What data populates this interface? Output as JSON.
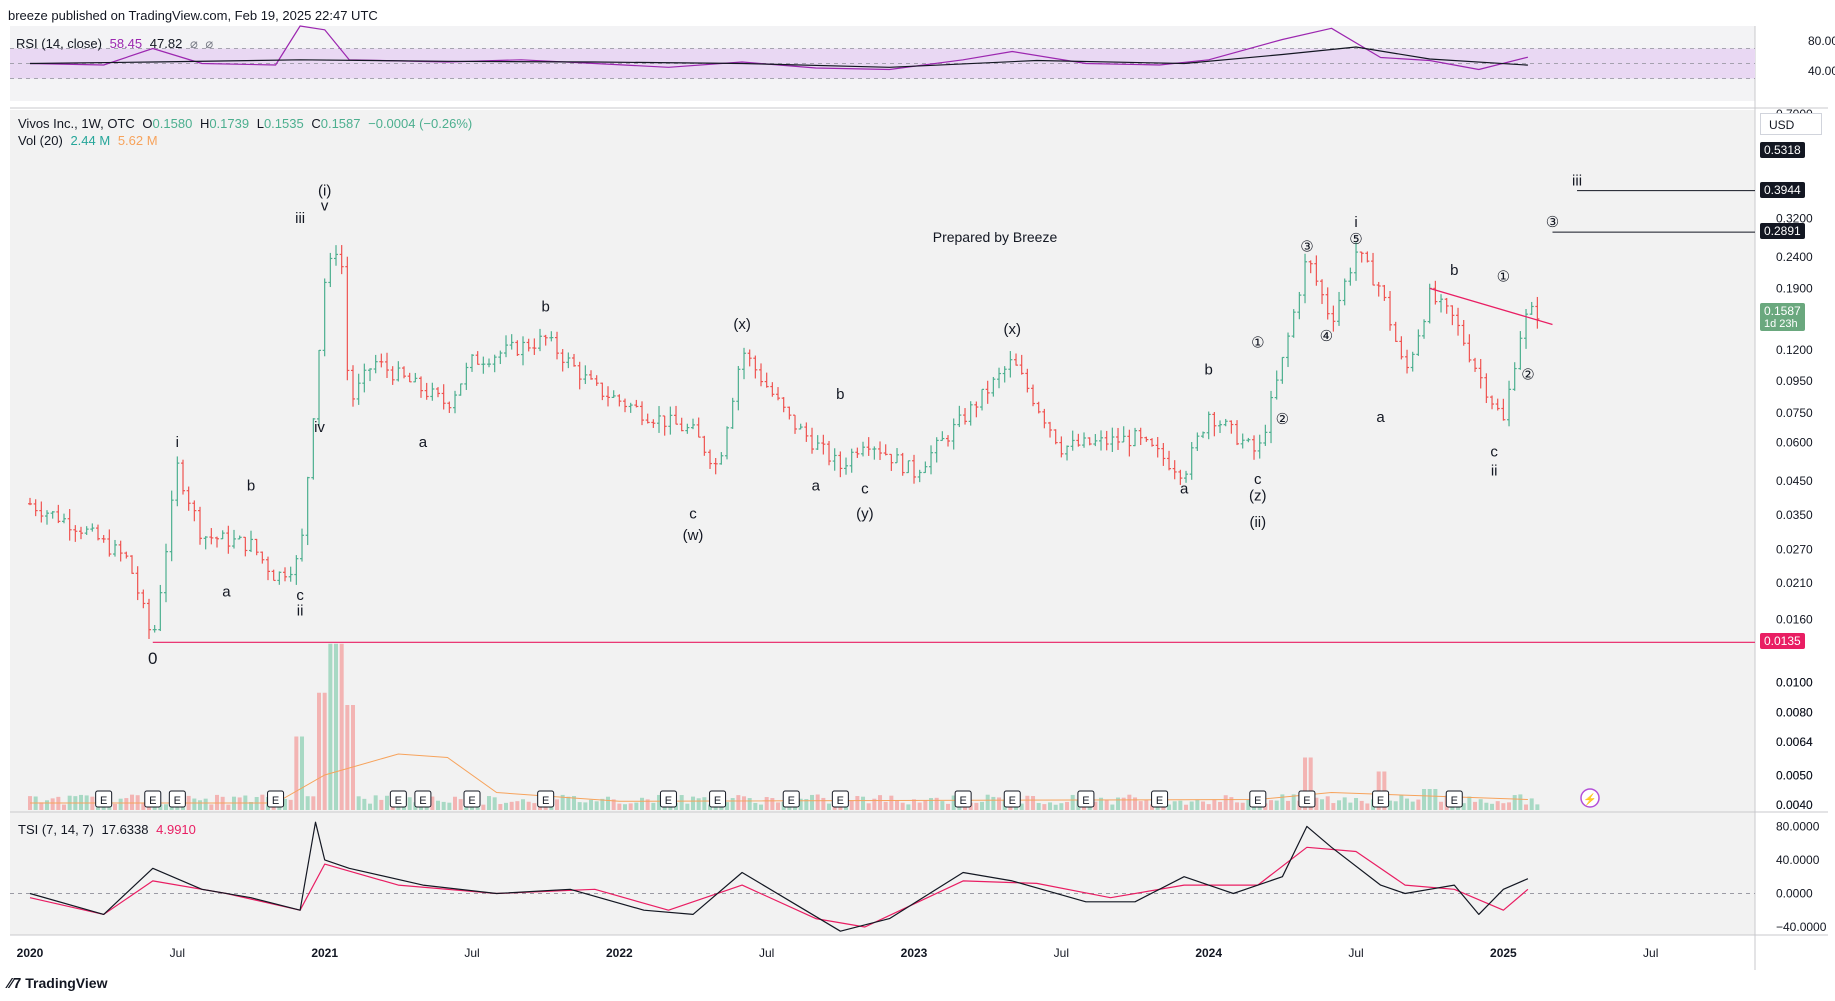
{
  "header": {
    "publisher": "breeze published on TradingView.com, Feb 19, 2025 22:47 UTC"
  },
  "rsi_legend": {
    "name": "RSI (14, close)",
    "v1": "58.45",
    "v2": "47.82",
    "s1": "⌀",
    "s2": "⌀"
  },
  "price_legend": {
    "symbol": "Vivos Inc., 1W, OTC",
    "o_label": "O",
    "o": "0.1580",
    "h_label": "H",
    "h": "0.1739",
    "l_label": "L",
    "l": "0.1535",
    "c_label": "C",
    "c": "0.1587",
    "change": "−0.0004 (−0.26%)"
  },
  "vol_legend": {
    "name": "Vol (20)",
    "v1": "2.44 M",
    "v2": "5.62 M"
  },
  "tsi_legend": {
    "name": "TSI (7, 14, 7)",
    "v1": "17.6338",
    "v2": "4.9910"
  },
  "currency": "USD",
  "watermark": "Prepared by Breeze",
  "footer": {
    "logo": "TradingView"
  },
  "colors": {
    "up": "#4caf8f",
    "down": "#ef5350",
    "rsi": "#9c27b0",
    "tsi": "#000000",
    "signal": "#e91e63",
    "accent": "#e91e63"
  },
  "chart_data": [
    {
      "type": "line",
      "name": "RSI",
      "ylim": [
        0,
        100
      ],
      "ticks": [
        "80.00",
        "40.00"
      ],
      "band": [
        30,
        70
      ],
      "values": [
        [
          "2020-01",
          50
        ],
        [
          "2020-04",
          48
        ],
        [
          "2020-06",
          70
        ],
        [
          "2020-08",
          50
        ],
        [
          "2020-11",
          48
        ],
        [
          "2020-12",
          100
        ],
        [
          "2021-01",
          95
        ],
        [
          "2021-02",
          55
        ],
        [
          "2021-06",
          52
        ],
        [
          "2021-09",
          55
        ],
        [
          "2021-12",
          50
        ],
        [
          "2022-03",
          45
        ],
        [
          "2022-06",
          52
        ],
        [
          "2022-09",
          44
        ],
        [
          "2022-12",
          42
        ],
        [
          "2023-03",
          55
        ],
        [
          "2023-05",
          66
        ],
        [
          "2023-08",
          50
        ],
        [
          "2023-11",
          48
        ],
        [
          "2024-01",
          55
        ],
        [
          "2024-04",
          82
        ],
        [
          "2024-06",
          97
        ],
        [
          "2024-08",
          58
        ],
        [
          "2024-10",
          54
        ],
        [
          "2024-12",
          42
        ],
        [
          "2025-02",
          58.45
        ]
      ],
      "ma_values": [
        [
          "2020-01",
          50
        ],
        [
          "2020-06",
          52
        ],
        [
          "2020-12",
          55
        ],
        [
          "2021-06",
          53
        ],
        [
          "2021-12",
          52
        ],
        [
          "2022-06",
          50
        ],
        [
          "2022-12",
          45
        ],
        [
          "2023-06",
          54
        ],
        [
          "2023-12",
          50
        ],
        [
          "2024-04",
          62
        ],
        [
          "2024-07",
          72
        ],
        [
          "2024-10",
          56
        ],
        [
          "2025-02",
          47.82
        ]
      ]
    },
    {
      "type": "line",
      "name": "Vivos Inc., 1W, OTC",
      "yscale": "log",
      "ylim": [
        0.0038,
        0.72
      ],
      "y_ticks": [
        "0.7000",
        "0.5318",
        "0.3944",
        "0.3200",
        "0.2891",
        "0.2400",
        "0.1900",
        "0.1587",
        "0.1200",
        "0.0950",
        "0.0750",
        "0.0600",
        "0.0450",
        "0.0350",
        "0.0270",
        "0.0210",
        "0.0160",
        "0.0135",
        "0.0100",
        "0.0080",
        "0.0064",
        "0.0050",
        "0.0040"
      ],
      "x_ticks": [
        "2020",
        "Jul",
        "2021",
        "Jul",
        "2022",
        "Jul",
        "2023",
        "Jul",
        "2024",
        "Jul",
        "2025",
        "Jul"
      ],
      "price_path": [
        [
          "2020-01",
          0.038
        ],
        [
          "2020-03",
          0.032
        ],
        [
          "2020-05",
          0.025
        ],
        [
          "2020-06",
          0.0135
        ],
        [
          "2020-07",
          0.05
        ],
        [
          "2020-08",
          0.03
        ],
        [
          "2020-10",
          0.028
        ],
        [
          "2020-11",
          0.022
        ],
        [
          "2020-12",
          0.025
        ],
        [
          "2020-12-20",
          0.09
        ],
        [
          "2021-01",
          0.2
        ],
        [
          "2021-01-20",
          0.28
        ],
        [
          "2021-02",
          0.08
        ],
        [
          "2021-03",
          0.11
        ],
        [
          "2021-06",
          0.08
        ],
        [
          "2021-07",
          0.11
        ],
        [
          "2021-10",
          0.13
        ],
        [
          "2021-12",
          0.09
        ],
        [
          "2022-02",
          0.075
        ],
        [
          "2022-04",
          0.065
        ],
        [
          "2022-05",
          0.05
        ],
        [
          "2022-06",
          0.12
        ],
        [
          "2022-08",
          0.07
        ],
        [
          "2022-10",
          0.05
        ],
        [
          "2022-11",
          0.062
        ],
        [
          "2023-01",
          0.048
        ],
        [
          "2023-03",
          0.072
        ],
        [
          "2023-05",
          0.11
        ],
        [
          "2023-07",
          0.058
        ],
        [
          "2023-10",
          0.062
        ],
        [
          "2023-12",
          0.048
        ],
        [
          "2024-01",
          0.075
        ],
        [
          "2024-03",
          0.055
        ],
        [
          "2024-04",
          0.11
        ],
        [
          "2024-05",
          0.24
        ],
        [
          "2024-06",
          0.15
        ],
        [
          "2024-07",
          0.25
        ],
        [
          "2024-08",
          0.19
        ],
        [
          "2024-09",
          0.1
        ],
        [
          "2024-10",
          0.18
        ],
        [
          "2024-11",
          0.15
        ],
        [
          "2024-12",
          0.1
        ],
        [
          "2025-01",
          0.07
        ],
        [
          "2025-01-20",
          0.13
        ],
        [
          "2025-02",
          0.1587
        ]
      ],
      "horizontal_levels": [
        {
          "price": 0.0135,
          "label": "0.0135"
        },
        {
          "price": 0.3944,
          "label": "0.3944"
        },
        {
          "price": 0.2891,
          "label": "0.2891"
        }
      ],
      "level_tags": [
        {
          "price": 0.5318,
          "label": "0.5318"
        },
        {
          "price": 0.3944,
          "label": "0.3944"
        },
        {
          "price": 0.2891,
          "label": "0.2891"
        },
        {
          "price": 0.1587,
          "label": "0.1587",
          "sub": "1d 23h"
        },
        {
          "price": 0.0135,
          "label": "0.0135"
        }
      ],
      "trendline": [
        [
          "2024-10",
          0.19
        ],
        [
          "2025-03",
          0.145
        ]
      ],
      "wave_labels": [
        {
          "t": "0",
          "date": "2020-06",
          "price": 0.0115
        },
        {
          "t": "i",
          "date": "2020-07",
          "price": 0.058
        },
        {
          "t": "a",
          "date": "2020-09",
          "price": 0.019
        },
        {
          "t": "b",
          "date": "2020-10",
          "price": 0.042
        },
        {
          "t": "c",
          "date": "2020-12",
          "price": 0.0185
        },
        {
          "t": "ii",
          "date": "2020-12",
          "price": 0.0165
        },
        {
          "t": "iii",
          "date": "2020-12",
          "price": 0.31
        },
        {
          "t": "iv",
          "date": "2020-12-25",
          "price": 0.065
        },
        {
          "t": "(i)",
          "date": "2021-01",
          "price": 0.38
        },
        {
          "t": "v",
          "date": "2021-01",
          "price": 0.34
        },
        {
          "t": "a",
          "date": "2021-05",
          "price": 0.058
        },
        {
          "t": "b",
          "date": "2021-10",
          "price": 0.16
        },
        {
          "t": "c",
          "date": "2022-04",
          "price": 0.034
        },
        {
          "t": "(w)",
          "date": "2022-04",
          "price": 0.029
        },
        {
          "t": "(x)",
          "date": "2022-06",
          "price": 0.14
        },
        {
          "t": "a",
          "date": "2022-09",
          "price": 0.042
        },
        {
          "t": "b",
          "date": "2022-10",
          "price": 0.083
        },
        {
          "t": "c",
          "date": "2022-11",
          "price": 0.041
        },
        {
          "t": "(y)",
          "date": "2022-11",
          "price": 0.034
        },
        {
          "t": "(x)",
          "date": "2023-05",
          "price": 0.135
        },
        {
          "t": "a",
          "date": "2023-12",
          "price": 0.041
        },
        {
          "t": "b",
          "date": "2024-01",
          "price": 0.1
        },
        {
          "t": "c",
          "date": "2024-03",
          "price": 0.044
        },
        {
          "t": "(z)",
          "date": "2024-03",
          "price": 0.039
        },
        {
          "t": "(ii)",
          "date": "2024-03",
          "price": 0.032
        },
        {
          "t": "①",
          "date": "2024-03",
          "price": 0.122
        },
        {
          "t": "②",
          "date": "2024-04",
          "price": 0.069
        },
        {
          "t": "③",
          "date": "2024-05",
          "price": 0.25
        },
        {
          "t": "④",
          "date": "2024-05-25",
          "price": 0.128
        },
        {
          "t": "⑤",
          "date": "2024-07",
          "price": 0.265
        },
        {
          "t": "i",
          "date": "2024-07",
          "price": 0.3
        },
        {
          "t": "a",
          "date": "2024-08",
          "price": 0.07
        },
        {
          "t": "b",
          "date": "2024-11",
          "price": 0.21
        },
        {
          "t": "①",
          "date": "2025-01",
          "price": 0.2
        },
        {
          "t": "②",
          "date": "2025-02",
          "price": 0.096
        },
        {
          "t": "c",
          "date": "2024-12-20",
          "price": 0.054
        },
        {
          "t": "ii",
          "date": "2024-12-20",
          "price": 0.047
        },
        {
          "t": "iii",
          "date": "2025-04",
          "price": 0.41
        },
        {
          "t": "③",
          "date": "2025-03",
          "price": 0.3
        }
      ]
    },
    {
      "type": "bar",
      "name": "Vol (20)",
      "values_note_free": true,
      "spikes": [
        [
          "2020-12",
          0.42
        ],
        [
          "2021-01",
          0.67
        ],
        [
          "2021-01-15",
          0.95
        ],
        [
          "2021-02",
          0.6
        ],
        [
          "2024-05",
          0.3
        ],
        [
          "2024-08",
          0.22
        ],
        [
          "2024-10",
          0.12
        ]
      ],
      "baseline": 0.06,
      "earnings_markers": [
        "2020-04",
        "2020-06",
        "2020-07",
        "2020-11",
        "2021-04",
        "2021-05",
        "2021-07",
        "2021-10",
        "2022-03",
        "2022-05",
        "2022-08",
        "2022-10",
        "2023-03",
        "2023-05",
        "2023-08",
        "2023-11",
        "2024-03",
        "2024-05",
        "2024-08",
        "2024-11"
      ],
      "earnings_label": "E"
    },
    {
      "type": "line",
      "name": "TSI (7, 14, 7)",
      "ylim": [
        -40,
        90
      ],
      "ticks": [
        "80.0000",
        "40.0000",
        "0.0000",
        "−40.0000"
      ],
      "tsi": [
        [
          "2020-01",
          0
        ],
        [
          "2020-04",
          -25
        ],
        [
          "2020-06",
          30
        ],
        [
          "2020-08",
          5
        ],
        [
          "2020-10",
          -5
        ],
        [
          "2020-12",
          -20
        ],
        [
          "2020-12-20",
          85
        ],
        [
          "2021-01",
          40
        ],
        [
          "2021-02",
          30
        ],
        [
          "2021-05",
          10
        ],
        [
          "2021-08",
          0
        ],
        [
          "2021-11",
          5
        ],
        [
          "2022-02",
          -20
        ],
        [
          "2022-04",
          -25
        ],
        [
          "2022-06",
          25
        ],
        [
          "2022-08",
          -10
        ],
        [
          "2022-10",
          -45
        ],
        [
          "2022-12",
          -30
        ],
        [
          "2023-03",
          25
        ],
        [
          "2023-05",
          15
        ],
        [
          "2023-08",
          -10
        ],
        [
          "2023-10",
          -10
        ],
        [
          "2023-12",
          20
        ],
        [
          "2024-02",
          0
        ],
        [
          "2024-04",
          20
        ],
        [
          "2024-05",
          80
        ],
        [
          "2024-06",
          55
        ],
        [
          "2024-08",
          10
        ],
        [
          "2024-09",
          0
        ],
        [
          "2024-11",
          10
        ],
        [
          "2024-12",
          -25
        ],
        [
          "2025-01",
          5
        ],
        [
          "2025-02",
          17.6338
        ]
      ],
      "signal": [
        [
          "2020-01",
          -5
        ],
        [
          "2020-04",
          -25
        ],
        [
          "2020-06",
          15
        ],
        [
          "2020-09",
          0
        ],
        [
          "2020-12",
          -20
        ],
        [
          "2021-01",
          35
        ],
        [
          "2021-04",
          10
        ],
        [
          "2021-08",
          0
        ],
        [
          "2021-12",
          5
        ],
        [
          "2022-03",
          -20
        ],
        [
          "2022-06",
          10
        ],
        [
          "2022-09",
          -30
        ],
        [
          "2022-11",
          -40
        ],
        [
          "2023-03",
          15
        ],
        [
          "2023-06",
          12
        ],
        [
          "2023-09",
          -5
        ],
        [
          "2023-12",
          10
        ],
        [
          "2024-03",
          10
        ],
        [
          "2024-05",
          55
        ],
        [
          "2024-07",
          50
        ],
        [
          "2024-09",
          10
        ],
        [
          "2024-11",
          5
        ],
        [
          "2025-01",
          -20
        ],
        [
          "2025-02",
          4.991
        ]
      ]
    }
  ]
}
